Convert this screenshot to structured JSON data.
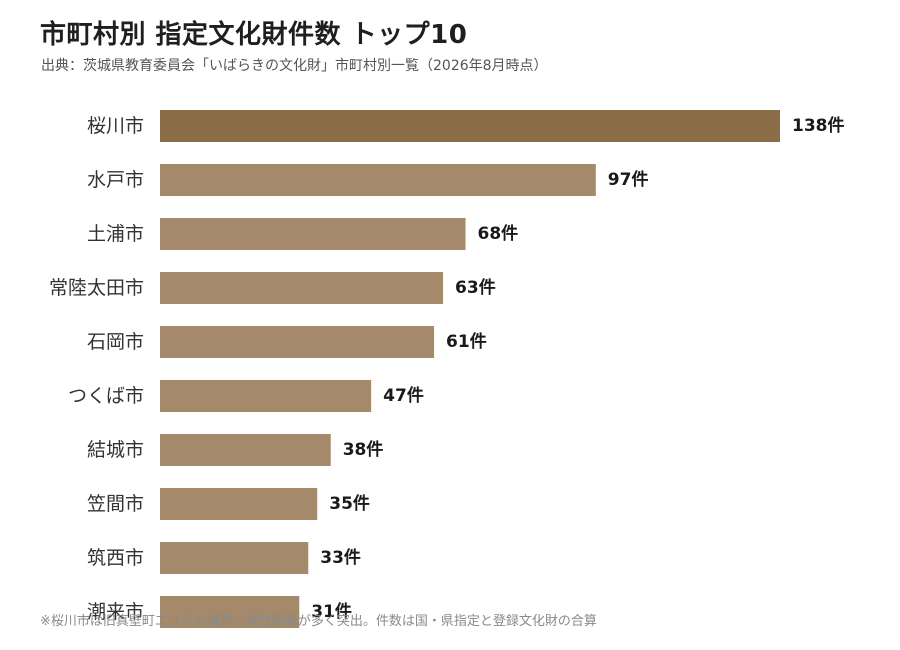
{
  "chart_data": {
    "type": "bar",
    "orientation": "horizontal",
    "title": "市町村別 指定文化財件数 トップ10",
    "subtitle": "出典：茨城県教育委員会「いばらきの文化財」市町村別一覧（2026年8月時点）",
    "note": "※桜川市は旧真壁町エリアの城跡・寺社建築が多く突出。件数は国・県指定と登録文化財の合算",
    "value_suffix": "件",
    "categories": [
      "桜川市",
      "水戸市",
      "土浦市",
      "常陸太田市",
      "石岡市",
      "つくば市",
      "結城市",
      "笠間市",
      "筑西市",
      "潮来市"
    ],
    "values": [
      138,
      97,
      68,
      63,
      61,
      47,
      38,
      35,
      33,
      31
    ],
    "data_labels": [
      "138件",
      "97件",
      "68件",
      "63件",
      "61件",
      "47件",
      "38件",
      "35件",
      "33件",
      "31件"
    ],
    "highlight_index": 0,
    "xlim": [
      0,
      138
    ],
    "grid": false,
    "legend": "none",
    "colors": {
      "highlight_bar": "#8b6e47",
      "bar": "#a4896a",
      "category_label": "#333333",
      "value_label": "#1a1a1a"
    }
  }
}
